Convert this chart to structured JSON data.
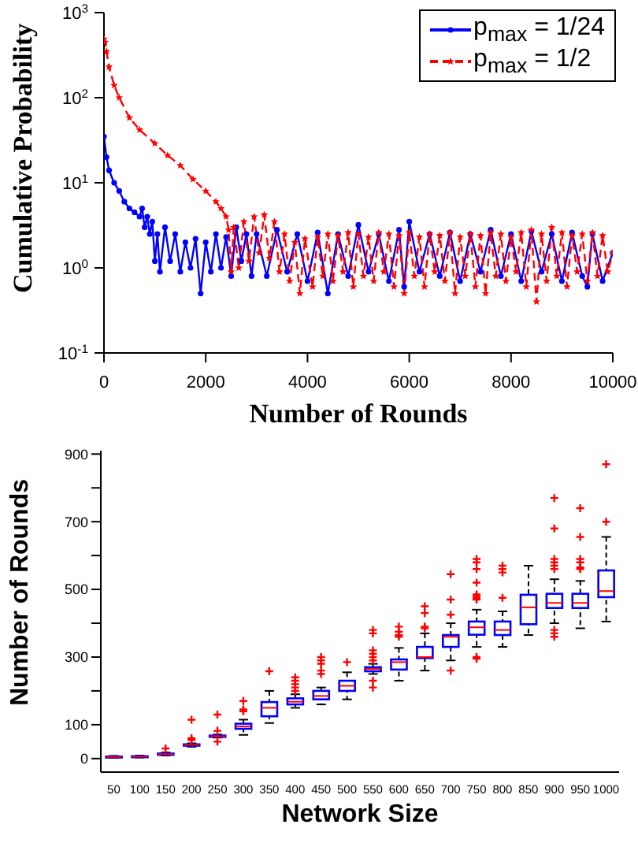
{
  "chart_data": [
    {
      "type": "line",
      "xlabel": "Number of Rounds",
      "ylabel": "Cumulative Probability",
      "log": "y",
      "xlim": [
        0,
        10000
      ],
      "xticks": [
        0,
        2000,
        4000,
        6000,
        8000,
        10000
      ],
      "ylim": [
        0.1,
        1000
      ],
      "yticks": [
        {
          "value": 0.1,
          "label": "10$^{-1}$"
        },
        {
          "value": 1,
          "label": "10$^{0}$"
        },
        {
          "value": 10,
          "label": "10$^{1}$"
        },
        {
          "value": 100,
          "label": "10$^{2}$"
        },
        {
          "value": 1000,
          "label": "10$^{3}$"
        }
      ],
      "legend": "top right",
      "series": [
        {
          "name": "p$_{max}$ = 1/24",
          "color": "#0000ff",
          "marker": "circle",
          "line_style": "solid",
          "x": [
            0,
            50,
            100,
            200,
            300,
            400,
            500,
            600,
            700,
            750,
            800,
            850,
            900,
            950,
            1000,
            1050,
            1100,
            1200,
            1300,
            1400,
            1500,
            1600,
            1700,
            1800,
            1900,
            2000,
            2100,
            2200,
            2300,
            2400,
            2500,
            2600,
            2700,
            2800,
            2900,
            3000,
            3200,
            3400,
            3600,
            3800,
            4000,
            4200,
            4400,
            4600,
            4800,
            5000,
            5200,
            5400,
            5600,
            5800,
            5900,
            6000,
            6200,
            6400,
            6600,
            6800,
            7000,
            7200,
            7400,
            7600,
            7800,
            8000,
            8200,
            8400,
            8600,
            8800,
            9000,
            9200,
            9400,
            9500,
            9600,
            9800,
            10000
          ],
          "values": [
            35,
            20,
            14,
            10,
            8,
            6,
            5,
            4.5,
            4,
            5,
            3,
            4,
            2.5,
            3.5,
            1.2,
            2.5,
            0.9,
            3,
            1.2,
            2.5,
            0.9,
            2,
            1,
            2.2,
            0.5,
            2,
            0.9,
            2.5,
            1,
            2.3,
            0.8,
            3,
            1.2,
            2.5,
            0.8,
            2.5,
            0.8,
            2.8,
            0.9,
            2.5,
            0.7,
            2.6,
            0.5,
            2.5,
            0.8,
            3.2,
            0.9,
            2.5,
            0.7,
            2.8,
            0.6,
            3.5,
            0.9,
            2.5,
            0.8,
            2.6,
            0.7,
            2.5,
            0.9,
            2.8,
            0.8,
            2.5,
            0.7,
            2.7,
            0.9,
            2.5,
            0.7,
            2.6,
            0.8,
            0.6,
            2.5,
            0.7,
            1.5
          ]
        },
        {
          "name": "p$_{max}$ = 1/2",
          "color": "#ff0000",
          "marker": "star",
          "line_style": "dashed",
          "x": [
            0,
            20,
            50,
            100,
            200,
            300,
            500,
            700,
            1000,
            1250,
            1500,
            1750,
            2000,
            2200,
            2300,
            2400,
            2450,
            2500,
            2550,
            2650,
            2750,
            2850,
            2950,
            3050,
            3150,
            3250,
            3350,
            3450,
            3550,
            3650,
            3750,
            3850,
            3950,
            4100,
            4200,
            4300,
            4400,
            4500,
            4600,
            4700,
            4800,
            4900,
            5000,
            5100,
            5200,
            5300,
            5400,
            5500,
            5600,
            5700,
            5800,
            5900,
            6000,
            6100,
            6200,
            6300,
            6400,
            6500,
            6600,
            6700,
            6800,
            6900,
            7000,
            7100,
            7200,
            7300,
            7400,
            7500,
            7600,
            7700,
            7800,
            7900,
            8000,
            8100,
            8200,
            8300,
            8400,
            8500,
            8600,
            8700,
            8800,
            8900,
            9000,
            9100,
            9200,
            9300,
            9400,
            9500,
            9600,
            9700,
            9800,
            9900,
            10000
          ],
          "values": [
            490,
            450,
            350,
            230,
            140,
            100,
            58,
            42,
            29,
            21,
            16,
            11,
            8,
            6,
            5,
            4,
            2.8,
            0.9,
            3,
            1,
            3.5,
            1.2,
            4,
            1.5,
            4.2,
            1.3,
            3.5,
            0.9,
            2.5,
            0.7,
            2,
            0.5,
            2.2,
            0.6,
            2.3,
            0.8,
            2.5,
            0.7,
            2.4,
            0.9,
            2.6,
            0.6,
            2.5,
            0.8,
            2.3,
            0.7,
            2.6,
            0.9,
            2.5,
            0.6,
            2.4,
            0.5,
            2.6,
            0.8,
            2.3,
            0.6,
            2.5,
            0.9,
            2.4,
            0.7,
            2.6,
            0.5,
            2.3,
            0.8,
            2.5,
            0.6,
            2.4,
            0.5,
            2.6,
            0.8,
            2.5,
            0.7,
            2.3,
            0.9,
            2.6,
            0.6,
            2.8,
            0.4,
            2.5,
            0.7,
            3,
            0.8,
            2.6,
            0.6,
            2.4,
            0.9,
            2.5,
            0.7,
            2.6,
            0.8,
            2.4,
            0.9,
            1.5
          ]
        }
      ]
    },
    {
      "type": "box",
      "xlabel": "Network Size",
      "ylabel": "Number of Rounds",
      "color": "#0000ff",
      "ylim": [
        -40,
        910
      ],
      "yticks": [
        0,
        100,
        {
          "value": 200,
          "label": null
        },
        300,
        {
          "value": 400,
          "label": null
        },
        500,
        {
          "value": 600,
          "label": null
        },
        700,
        {
          "value": 800,
          "label": null
        },
        900
      ],
      "categories": [
        "50",
        "100",
        "150",
        "200",
        "250",
        "300",
        "350",
        "400",
        "450",
        "500",
        "550",
        "600",
        "650",
        "700",
        "750",
        "800",
        "850",
        "900",
        "950",
        "1000"
      ],
      "boxes": [
        {
          "low": 2,
          "q1": 3,
          "median": 5,
          "q3": 6,
          "high": 8
        },
        {
          "low": 3,
          "q1": 4,
          "median": 6,
          "q3": 7,
          "high": 9
        },
        {
          "low": 9,
          "q1": 11,
          "median": 13,
          "q3": 15,
          "high": 18,
          "outliers": [
            30
          ]
        },
        {
          "low": 35,
          "q1": 38,
          "median": 40,
          "q3": 42,
          "high": 45,
          "outliers": [
            115,
            60,
            55
          ]
        },
        {
          "low": 62,
          "q1": 64,
          "median": 66,
          "q3": 68,
          "high": 71,
          "outliers": [
            130,
            82,
            50
          ]
        },
        {
          "low": 70,
          "q1": 88,
          "median": 95,
          "q3": 103,
          "high": 115,
          "outliers": [
            170,
            145,
            140
          ]
        },
        {
          "low": 105,
          "q1": 125,
          "median": 150,
          "q3": 167,
          "high": 200,
          "outliers": [
            258
          ]
        },
        {
          "low": 150,
          "q1": 160,
          "median": 168,
          "q3": 178,
          "high": 190,
          "outliers": [
            240,
            230,
            220,
            210,
            200
          ]
        },
        {
          "low": 160,
          "q1": 175,
          "median": 185,
          "q3": 200,
          "high": 210,
          "outliers": [
            300,
            290,
            280,
            260,
            250
          ]
        },
        {
          "low": 175,
          "q1": 200,
          "median": 215,
          "q3": 230,
          "high": 255,
          "outliers": [
            285
          ]
        },
        {
          "low": 250,
          "q1": 258,
          "median": 265,
          "q3": 270,
          "high": 280,
          "outliers": [
            380,
            370,
            320,
            310,
            300,
            290,
            230,
            210
          ]
        },
        {
          "low": 230,
          "q1": 263,
          "median": 285,
          "q3": 293,
          "high": 327,
          "outliers": [
            390,
            375,
            365,
            360
          ]
        },
        {
          "low": 260,
          "q1": 297,
          "median": 300,
          "q3": 330,
          "high": 370,
          "outliers": [
            450,
            430,
            390,
            385
          ]
        },
        {
          "low": 290,
          "q1": 330,
          "median": 360,
          "q3": 365,
          "high": 400,
          "outliers": [
            545,
            470,
            425,
            260
          ]
        },
        {
          "low": 330,
          "q1": 366,
          "median": 388,
          "q3": 405,
          "high": 440,
          "outliers": [
            590,
            580,
            560,
            520,
            485,
            480,
            475,
            470,
            300,
            295
          ]
        },
        {
          "low": 330,
          "q1": 365,
          "median": 380,
          "q3": 405,
          "high": 435,
          "outliers": [
            570,
            560,
            550,
            475
          ]
        },
        {
          "low": 365,
          "q1": 397,
          "median": 447,
          "q3": 484,
          "high": 570
        },
        {
          "low": 400,
          "q1": 445,
          "median": 460,
          "q3": 487,
          "high": 530,
          "outliers": [
            770,
            680,
            590,
            580,
            570,
            560,
            380,
            370,
            360
          ]
        },
        {
          "low": 385,
          "q1": 445,
          "median": 460,
          "q3": 487,
          "high": 525,
          "outliers": [
            740,
            655,
            590,
            580,
            565,
            560
          ]
        },
        {
          "low": 405,
          "q1": 477,
          "median": 495,
          "q3": 556,
          "high": 655,
          "outliers": [
            870,
            700
          ]
        }
      ]
    }
  ]
}
